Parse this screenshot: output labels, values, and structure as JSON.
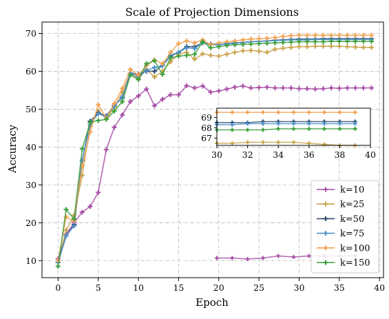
{
  "chart_data": {
    "type": "line",
    "title": "Scale of Projection Dimensions",
    "xlabel": "Epoch",
    "ylabel": "Accuracy",
    "xlim": [
      -2,
      40.5
    ],
    "ylim": [
      5.5,
      73
    ],
    "xticks": [
      "0",
      "5",
      "10",
      "15",
      "20",
      "25",
      "30",
      "35",
      "40"
    ],
    "yticks": [
      "10",
      "20",
      "30",
      "40",
      "50",
      "60",
      "70"
    ],
    "grid": true,
    "legend_position": "lower-right",
    "x": [
      0,
      1,
      2,
      3,
      4,
      5,
      6,
      7,
      8,
      9,
      10,
      11,
      12,
      13,
      14,
      15,
      16,
      17,
      18,
      19,
      20,
      21,
      22,
      23,
      24,
      25,
      26,
      27,
      28,
      29,
      30,
      31,
      32,
      33,
      34,
      35,
      36,
      37,
      38,
      39
    ],
    "series": [
      {
        "name": "k=10",
        "color": "#a64ca6",
        "marker": "plus",
        "values": [
          10.5,
          17.0,
          20.0,
          22.8,
          24.3,
          28.0,
          39.3,
          45.2,
          48.5,
          52.0,
          53.5,
          55.3,
          50.9,
          52.6,
          53.8,
          53.8,
          56.2,
          55.6,
          56.1,
          54.5,
          54.8,
          55.3,
          55.8,
          56.1,
          55.6,
          55.7,
          55.8,
          55.6,
          55.6,
          55.6,
          55.4,
          55.4,
          55.3,
          55.4,
          55.6,
          55.5,
          55.6,
          55.6,
          55.6,
          55.6
        ]
      },
      {
        "name": "k=25",
        "color": "#c9a24a",
        "marker": "plus",
        "values": [
          9.5,
          18.0,
          22.0,
          32.5,
          45.5,
          49.5,
          47.5,
          50.5,
          54.5,
          59.5,
          58.0,
          60.5,
          58.5,
          60.0,
          62.5,
          64.5,
          65.0,
          63.2,
          64.6,
          64.2,
          64.0,
          64.5,
          65.0,
          65.4,
          65.5,
          65.3,
          65.0,
          65.8,
          66.1,
          66.3,
          66.5,
          66.5,
          66.6,
          66.6,
          66.6,
          66.6,
          66.5,
          66.4,
          66.3,
          66.3
        ]
      },
      {
        "name": "k=50",
        "color": "#2d4a6b",
        "marker": "plus",
        "values": [
          9.5,
          16.5,
          19.5,
          36.5,
          46.8,
          49.0,
          48.2,
          51.0,
          53.0,
          59.5,
          59.2,
          60.0,
          60.0,
          61.5,
          64.0,
          65.0,
          66.5,
          66.5,
          67.5,
          67.2,
          67.0,
          67.3,
          67.5,
          67.6,
          67.8,
          67.9,
          68.0,
          68.2,
          68.3,
          68.4,
          68.5,
          68.5,
          68.5,
          68.6,
          68.6,
          68.6,
          68.6,
          68.6,
          68.6,
          68.6
        ]
      },
      {
        "name": "k=75",
        "color": "#4a90c9",
        "marker": "plus",
        "values": [
          9.5,
          16.5,
          19.2,
          36.5,
          46.0,
          48.8,
          48.0,
          50.8,
          53.2,
          59.5,
          58.5,
          60.2,
          61.0,
          61.5,
          64.3,
          65.0,
          66.2,
          66.0,
          67.6,
          67.0,
          67.0,
          67.2,
          67.4,
          67.6,
          67.8,
          67.9,
          68.0,
          68.1,
          68.2,
          68.3,
          68.3,
          68.3,
          68.4,
          68.4,
          68.4,
          68.4,
          68.4,
          68.4,
          68.4,
          68.4
        ]
      },
      {
        "name": "k=100",
        "color": "#f2a04f",
        "marker": "plus",
        "values": [
          10.0,
          21.5,
          20.5,
          35.0,
          44.0,
          51.2,
          47.5,
          51.5,
          55.5,
          60.5,
          59.0,
          61.5,
          63.0,
          62.0,
          65.0,
          67.3,
          68.0,
          67.5,
          68.3,
          67.0,
          67.5,
          67.8,
          68.0,
          68.3,
          68.5,
          68.6,
          68.7,
          68.9,
          69.2,
          69.4,
          69.5,
          69.5,
          69.5,
          69.5,
          69.5,
          69.5,
          69.5,
          69.5,
          69.5,
          69.5
        ]
      },
      {
        "name": "k=150",
        "color": "#3a9e3a",
        "marker": "plus",
        "values": [
          8.5,
          23.5,
          21.0,
          39.5,
          46.5,
          47.0,
          47.3,
          49.5,
          52.0,
          59.0,
          57.8,
          62.0,
          62.8,
          59.2,
          63.5,
          64.0,
          64.2,
          64.5,
          67.8,
          66.2,
          66.5,
          66.8,
          67.0,
          67.1,
          67.2,
          67.3,
          67.4,
          67.5,
          67.6,
          67.7,
          67.8,
          67.8,
          67.8,
          67.8,
          67.9,
          67.9,
          67.9,
          67.9,
          67.9,
          67.9
        ]
      }
    ],
    "inset": {
      "xlim": [
        30,
        40
      ],
      "ylim": [
        66.3,
        69.9
      ],
      "xticks": [
        "30",
        "32",
        "34",
        "36",
        "38",
        "40"
      ],
      "yticks": [
        "67",
        "68",
        "69"
      ],
      "x_range_shown": [
        30,
        39
      ]
    }
  }
}
